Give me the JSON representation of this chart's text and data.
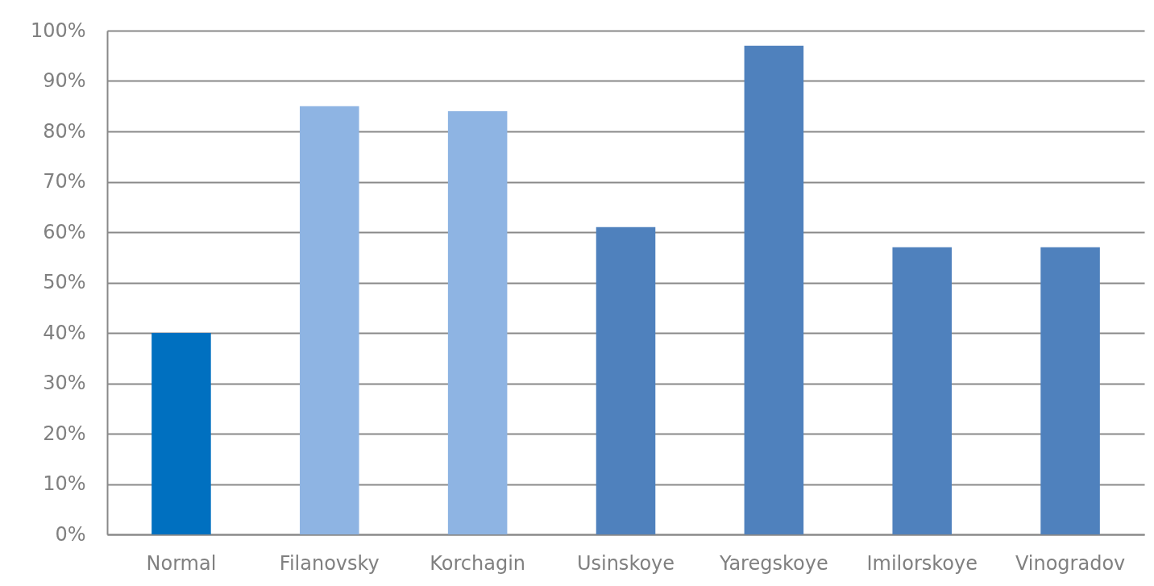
{
  "chart_data": {
    "type": "bar",
    "categories": [
      "Normal",
      "Filanovsky",
      "Korchagin",
      "Usinskoye",
      "Yaregskoye",
      "Imilorskoye",
      "Vinogradov"
    ],
    "values": [
      40,
      85,
      84,
      61,
      97,
      57,
      57
    ],
    "colors": [
      "#0070c0",
      "#8eb4e3",
      "#8eb4e3",
      "#4f81bd",
      "#4f81bd",
      "#4f81bd",
      "#4f81bd"
    ],
    "ylim": [
      0,
      100
    ],
    "yticks": [
      {
        "value": 0,
        "label": "0%"
      },
      {
        "value": 10,
        "label": "10%"
      },
      {
        "value": 20,
        "label": "20%"
      },
      {
        "value": 30,
        "label": "30%"
      },
      {
        "value": 40,
        "label": "40%"
      },
      {
        "value": 50,
        "label": "50%"
      },
      {
        "value": 60,
        "label": "60%"
      },
      {
        "value": 70,
        "label": "70%"
      },
      {
        "value": 80,
        "label": "80%"
      },
      {
        "value": 90,
        "label": "90%"
      },
      {
        "value": 100,
        "label": "100%"
      }
    ],
    "grid": "y"
  }
}
